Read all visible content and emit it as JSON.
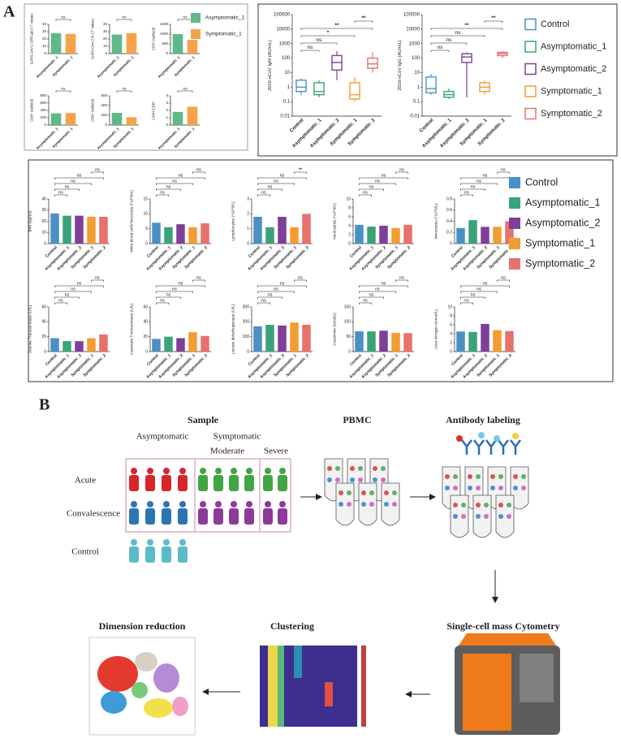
{
  "panel_labels": [
    "A",
    "B"
  ],
  "chart_data": [
    {
      "type": "bar",
      "y_label": "SARS-CoV-2 ORF1ab CT Values",
      "categories": [
        "Asymptomatic_1",
        "Symptomatic_1"
      ],
      "colors": [
        "#5fb98a",
        "#f6a24a"
      ],
      "values": [
        28,
        27
      ],
      "ylim": [
        0,
        40
      ],
      "yticks": [
        0,
        10,
        20,
        30,
        40
      ],
      "annotations": [
        "ns"
      ]
    },
    {
      "type": "bar",
      "y_label": "SARS-CoV-2 N CT Values",
      "categories": [
        "Asymptomatic_1",
        "Symptomatic_1"
      ],
      "colors": [
        "#5fb98a",
        "#f6a24a"
      ],
      "values": [
        26,
        28
      ],
      "ylim": [
        0,
        40
      ],
      "yticks": [
        0,
        10,
        20,
        30,
        40
      ],
      "annotations": [
        "ns"
      ]
    },
    {
      "type": "bar",
      "y_label": "CD3+ (cells/ul)",
      "categories": [
        "Asymptomatic_1",
        "Symptomatic_1"
      ],
      "colors": [
        "#5fb98a",
        "#f6a24a"
      ],
      "values": [
        1000,
        700
      ],
      "ylim": [
        0,
        1500
      ],
      "yticks": [
        0,
        500,
        1000,
        1500
      ],
      "annotations": [
        "ns"
      ]
    },
    {
      "type": "bar",
      "y_label": "CD4+ (cells/ul)",
      "categories": [
        "Asymptomatic_1",
        "Symptomatic_1"
      ],
      "colors": [
        "#5fb98a",
        "#f6a24a"
      ],
      "values": [
        320,
        330
      ],
      "ylim": [
        0,
        800
      ],
      "yticks": [
        0,
        200,
        400,
        600,
        800
      ],
      "annotations": [
        "ns"
      ]
    },
    {
      "type": "bar",
      "y_label": "CD8+ (cells/ul)",
      "categories": [
        "Asymptomatic_1",
        "Symptomatic_1"
      ],
      "colors": [
        "#5fb98a",
        "#f6a24a"
      ],
      "values": [
        250,
        160
      ],
      "ylim": [
        0,
        600
      ],
      "yticks": [
        0,
        200,
        400,
        600
      ],
      "annotations": [
        "ns"
      ]
    },
    {
      "type": "bar",
      "y_label": "CD4+/CD8+",
      "categories": [
        "Asymptomatic_1",
        "Symptomatic_1"
      ],
      "colors": [
        "#5fb98a",
        "#f6a24a"
      ],
      "values": [
        1.8,
        2.5
      ],
      "ylim": [
        0,
        4
      ],
      "yticks": [
        0,
        1,
        2,
        3,
        4
      ],
      "annotations": [
        "ns"
      ]
    },
    {
      "type": "box",
      "y_label": "2019-nCoV IgM (AU/mL)",
      "log_scale": true,
      "categories": [
        "Control",
        "Asymptomatic_1",
        "Asymptomatic_2",
        "Symptomatic_1",
        "Symptomatic_2"
      ],
      "colors": [
        "#4a90c4",
        "#3aa37a",
        "#7f3f98",
        "#f39c32",
        "#e8706d"
      ],
      "boxes": [
        [
          0.3,
          0.5,
          1,
          3,
          4
        ],
        [
          0.2,
          0.3,
          0.5,
          2,
          3
        ],
        [
          3,
          15,
          50,
          150,
          300
        ],
        [
          0.1,
          0.15,
          0.3,
          2,
          5
        ],
        [
          10,
          20,
          40,
          100,
          250
        ]
      ],
      "ylim": [
        0.01,
        100000
      ],
      "yticks": [
        0.01,
        0.1,
        1,
        10,
        100,
        1000,
        10000,
        100000
      ],
      "annotations": [
        "ns",
        "ns",
        "*",
        "**",
        "**"
      ]
    },
    {
      "type": "box",
      "y_label": "2019-nCoV IgG (AU/mL)",
      "log_scale": true,
      "categories": [
        "Control",
        "Asymptomatic_1",
        "Asymptomatic_2",
        "Symptomatic_1",
        "Symptomatic_2"
      ],
      "colors": [
        "#4a90c4",
        "#3aa37a",
        "#7f3f98",
        "#f39c32",
        "#e8706d"
      ],
      "boxes": [
        [
          0.3,
          0.4,
          0.8,
          5,
          8
        ],
        [
          0.15,
          0.2,
          0.3,
          0.5,
          0.8
        ],
        [
          0.2,
          50,
          120,
          200,
          250
        ],
        [
          0.3,
          0.5,
          1,
          2,
          3
        ],
        [
          100,
          150,
          200,
          250,
          300
        ]
      ],
      "ylim": [
        0.01,
        100000
      ],
      "yticks": [
        0.01,
        0.1,
        1,
        10,
        100,
        1000,
        10000,
        100000
      ],
      "annotations": [
        "ns",
        "ns",
        "ns",
        "**",
        "**"
      ]
    },
    {
      "type": "bar",
      "y_label": "BMI (kg/m2)",
      "categories": [
        "Control",
        "Asymptomatic_1",
        "Asymptomatic_2",
        "Symptomatic_1",
        "Symptomatic_2"
      ],
      "colors": [
        "#4a90c4",
        "#3aa37a",
        "#7f3f98",
        "#f39c32",
        "#e8706d"
      ],
      "values": [
        27,
        25,
        25,
        24,
        24
      ],
      "ylim": [
        0,
        40
      ],
      "yticks": [
        0,
        10,
        20,
        30,
        40
      ],
      "annotations": [
        "ns",
        "ns",
        "ns",
        "ns",
        "ns"
      ]
    },
    {
      "type": "bar",
      "y_label": "white blood cells leucocyte (*10^9/L)",
      "categories": [
        "Control",
        "Asymptomatic_1",
        "Asymptomatic_2",
        "Symptomatic_1",
        "Symptomatic_2"
      ],
      "colors": [
        "#4a90c4",
        "#3aa37a",
        "#7f3f98",
        "#f39c32",
        "#e8706d"
      ],
      "values": [
        7,
        5.5,
        6.5,
        5.5,
        6.8
      ],
      "ylim": [
        0,
        15
      ],
      "yticks": [
        0,
        5,
        10,
        15
      ],
      "annotations": [
        "ns",
        "ns",
        "ns",
        "ns",
        "ns"
      ]
    },
    {
      "type": "bar",
      "y_label": "Lymphocytes (*10^9/L)",
      "categories": [
        "Control",
        "Asymptomatic_1",
        "Asymptomatic_2",
        "Symptomatic_1",
        "Symptomatic_2"
      ],
      "colors": [
        "#4a90c4",
        "#3aa37a",
        "#7f3f98",
        "#f39c32",
        "#e8706d"
      ],
      "values": [
        1.8,
        1.1,
        1.8,
        1.1,
        2.0
      ],
      "ylim": [
        0,
        3
      ],
      "yticks": [
        0,
        1,
        2,
        3
      ],
      "annotations": [
        "ns",
        "ns",
        "ns",
        "ns",
        "**"
      ]
    },
    {
      "type": "bar",
      "y_label": "Neutrophils (*10^9/L)",
      "categories": [
        "Control",
        "Asymptomatic_1",
        "Asymptomatic_2",
        "Symptomatic_1",
        "Symptomatic_2"
      ],
      "colors": [
        "#4a90c4",
        "#3aa37a",
        "#7f3f98",
        "#f39c32",
        "#e8706d"
      ],
      "values": [
        4.2,
        3.8,
        4,
        3.5,
        4.2
      ],
      "ylim": [
        0,
        10
      ],
      "yticks": [
        0,
        2,
        4,
        6,
        8,
        10
      ],
      "annotations": [
        "ns",
        "ns",
        "ns",
        "ns",
        "ns"
      ]
    },
    {
      "type": "bar",
      "y_label": "Monocytes (*10^9/L)",
      "categories": [
        "Control",
        "Asymptomatic_1",
        "Asymptomatic_2",
        "Symptomatic_1",
        "Symptomatic_2"
      ],
      "colors": [
        "#4a90c4",
        "#3aa37a",
        "#7f3f98",
        "#f39c32",
        "#e8706d"
      ],
      "values": [
        0.28,
        0.42,
        0.3,
        0.3,
        0.4
      ],
      "ylim": [
        0,
        0.8
      ],
      "yticks": [
        0,
        0.2,
        0.4,
        0.6,
        0.8
      ],
      "annotations": [
        "ns",
        "ns",
        "ns",
        "ns",
        "ns"
      ]
    },
    {
      "type": "bar",
      "y_label": "Alanine Transaminase (U/L)",
      "categories": [
        "Control",
        "Asymptomatic_1",
        "Asymptomatic_2",
        "Symptomatic_1",
        "Symptomatic_2"
      ],
      "colors": [
        "#4a90c4",
        "#3aa37a",
        "#7f3f98",
        "#f39c32",
        "#e8706d"
      ],
      "values": [
        18,
        14,
        14,
        18,
        23
      ],
      "ylim": [
        0,
        60
      ],
      "yticks": [
        0,
        20,
        40,
        60
      ],
      "annotations": [
        "ns",
        "ns",
        "ns",
        "ns",
        "ns"
      ]
    },
    {
      "type": "bar",
      "y_label": "Aspartate Transaminase (U/L)",
      "categories": [
        "Control",
        "Asymptomatic_1",
        "Asymptomatic_2",
        "Symptomatic_1",
        "Symptomatic_2"
      ],
      "colors": [
        "#4a90c4",
        "#3aa37a",
        "#7f3f98",
        "#f39c32",
        "#e8706d"
      ],
      "values": [
        17,
        20,
        18,
        26,
        21
      ],
      "ylim": [
        0,
        60
      ],
      "yticks": [
        0,
        20,
        40,
        60
      ],
      "annotations": [
        "ns",
        "ns",
        "ns",
        "ns",
        "ns"
      ]
    },
    {
      "type": "bar",
      "y_label": "Lactate dehydrogenase (U/L)",
      "categories": [
        "Control",
        "Asymptomatic_1",
        "Asymptomatic_2",
        "Symptomatic_1",
        "Symptomatic_2"
      ],
      "colors": [
        "#4a90c4",
        "#3aa37a",
        "#7f3f98",
        "#f39c32",
        "#e8706d"
      ],
      "values": [
        170,
        180,
        175,
        195,
        180
      ],
      "ylim": [
        0,
        300
      ],
      "yticks": [
        0,
        100,
        200,
        300
      ],
      "annotations": [
        "ns",
        "ns",
        "ns",
        "ns",
        "ns"
      ]
    },
    {
      "type": "bar",
      "y_label": "Creatinine (umol/L)",
      "categories": [
        "Control",
        "Asymptomatic_1",
        "Asymptomatic_2",
        "Symptomatic_1",
        "Symptomatic_2"
      ],
      "colors": [
        "#4a90c4",
        "#3aa37a",
        "#7f3f98",
        "#f39c32",
        "#e8706d"
      ],
      "values": [
        68,
        68,
        70,
        63,
        62
      ],
      "ylim": [
        0,
        150
      ],
      "yticks": [
        0,
        50,
        100,
        150
      ],
      "annotations": [
        "ns",
        "ns",
        "ns",
        "ns",
        "ns"
      ]
    },
    {
      "type": "bar",
      "y_label": "Urea nitrogen (mmol/L)",
      "categories": [
        "Control",
        "Asymptomatic_1",
        "Asymptomatic_2",
        "Symptomatic_1",
        "Symptomatic_2"
      ],
      "colors": [
        "#4a90c4",
        "#3aa37a",
        "#7f3f98",
        "#f39c32",
        "#e8706d"
      ],
      "values": [
        4.5,
        4.4,
        6.2,
        4.8,
        4.6
      ],
      "ylim": [
        0,
        10
      ],
      "yticks": [
        0,
        2,
        4,
        6,
        8,
        10
      ],
      "annotations": [
        "ns",
        "ns",
        "ns",
        "ns",
        "ns"
      ]
    }
  ],
  "workflow": {
    "sample": {
      "title": "Sample",
      "groups": [
        "Asymptomatic",
        "Symptomatic"
      ],
      "subgroups": [
        "Moderate",
        "Severe"
      ],
      "rows": [
        "Acute",
        "Convalescence",
        "Control"
      ]
    },
    "steps": [
      "PBMC",
      "Antibody labeling",
      "Single-cell mass Cytometry",
      "Clustering",
      "Dimension reduction"
    ]
  }
}
